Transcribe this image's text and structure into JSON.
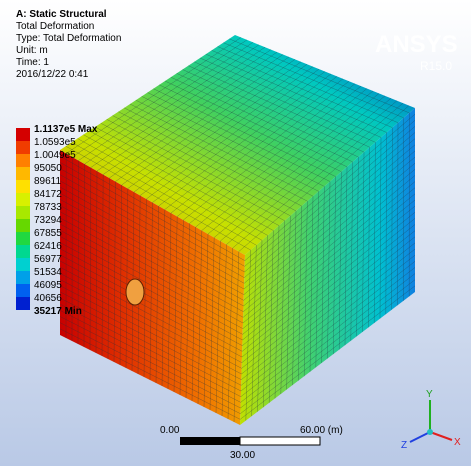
{
  "header": {
    "lines": [
      "A: Static Structural",
      "Total Deformation",
      "Type: Total Deformation",
      "Unit: m",
      "Time: 1",
      "2016/12/22 0:41"
    ]
  },
  "logo": {
    "name": "ANSYS",
    "version": "R15.0"
  },
  "legend": {
    "labels": [
      "1.1137e5 Max",
      "1.0593e5",
      "1.0049e5",
      "95050",
      "89611",
      "84172",
      "78733",
      "73294",
      "67855",
      "62416",
      "56977",
      "51534",
      "46095",
      "40656",
      "35217 Min"
    ],
    "colors": [
      "#d40000",
      "#f03c00",
      "#ff8000",
      "#ffb800",
      "#ffe000",
      "#d8f000",
      "#a8e800",
      "#66d800",
      "#20d840",
      "#00d890",
      "#00d0d0",
      "#00a0e8",
      "#0060f0",
      "#0020d0"
    ]
  },
  "scale_bar": {
    "start": "0.00",
    "end": "60.00 (m)",
    "middle": "30.00"
  },
  "triad": {
    "x": "X",
    "y": "Y",
    "z": "Z"
  }
}
